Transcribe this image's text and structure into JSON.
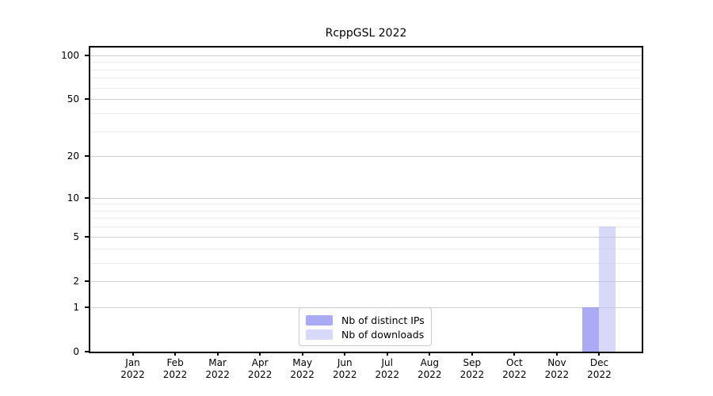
{
  "chart_data": {
    "type": "bar",
    "title": "RcppGSL 2022",
    "categories": [
      "Jan 2022",
      "Feb 2022",
      "Mar 2022",
      "Apr 2022",
      "May 2022",
      "Jun 2022",
      "Jul 2022",
      "Aug 2022",
      "Sep 2022",
      "Oct 2022",
      "Nov 2022",
      "Dec 2022"
    ],
    "series": [
      {
        "name": "Nb of distinct IPs",
        "values": [
          0,
          0,
          0,
          0,
          0,
          0,
          0,
          0,
          0,
          0,
          0,
          1
        ],
        "color": "rgba(125,125,240,0.65)",
        "color_hex": "#abaaf5"
      },
      {
        "name": "Nb of downloads",
        "values": [
          0,
          0,
          0,
          0,
          0,
          0,
          0,
          0,
          0,
          0,
          0,
          6
        ],
        "color": "rgba(190,190,243,0.6)",
        "color_hex": "#dbdbf8"
      }
    ],
    "yscale": "log1p",
    "ylim": [
      0,
      113
    ],
    "yticks": [
      0,
      1,
      2,
      5,
      10,
      20,
      50,
      100
    ],
    "yticks_minor": [
      3,
      4,
      6,
      7,
      8,
      9,
      30,
      40,
      60,
      70,
      80,
      90
    ],
    "xlabel": "",
    "ylabel": "",
    "grid": "horizontal",
    "legend_position": "bottom-center"
  },
  "colors": {
    "background": "#ffffff",
    "axis": "#000000",
    "grid_major": "#d0d0d0",
    "grid_minor": "#ececec",
    "legend_border": "#cccccc",
    "bar_distinct_ips": "#abaaf5",
    "bar_downloads": "#dbdbf8"
  }
}
